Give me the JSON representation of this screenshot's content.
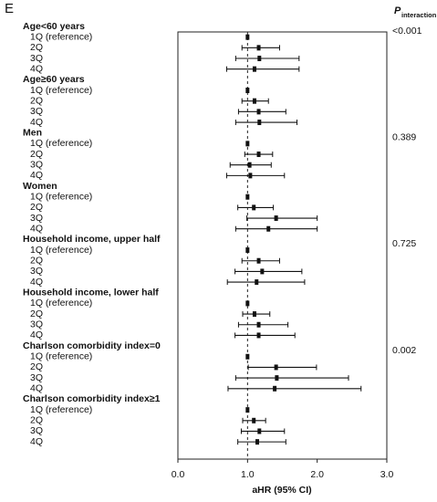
{
  "panel_label": "E",
  "chart_data": {
    "type": "forest",
    "p_header": "P",
    "p_header_sub": "interaction",
    "xlabel": "aHR (95% CI)",
    "xlim": [
      0,
      3
    ],
    "xticks": [
      {
        "value": 0,
        "label": "0.0"
      },
      {
        "value": 1,
        "label": "1.0"
      },
      {
        "value": 2,
        "label": "2.0"
      },
      {
        "value": 3,
        "label": "3.0"
      }
    ],
    "ref_line": 1,
    "groups": [
      {
        "label": "Age<60 years",
        "p_interaction": "<0.001",
        "rows": [
          {
            "label": "1Q (reference)",
            "value": 1.0
          },
          {
            "label": "2Q",
            "value": 1.16,
            "lower": 0.92,
            "upper": 1.46
          },
          {
            "label": "3Q",
            "value": 1.17,
            "lower": 0.83,
            "upper": 1.74
          },
          {
            "label": "4Q",
            "value": 1.1,
            "lower": 0.7,
            "upper": 1.74
          }
        ]
      },
      {
        "label": "Age≥60 years",
        "rows": [
          {
            "label": "1Q (reference)",
            "value": 1.0
          },
          {
            "label": "2Q",
            "value": 1.1,
            "lower": 0.92,
            "upper": 1.3
          },
          {
            "label": "3Q",
            "value": 1.16,
            "lower": 0.87,
            "upper": 1.55
          },
          {
            "label": "4Q",
            "value": 1.17,
            "lower": 0.83,
            "upper": 1.71
          }
        ]
      },
      {
        "label": "Men",
        "p_interaction": "0.389",
        "rows": [
          {
            "label": "1Q (reference)",
            "value": 1.0
          },
          {
            "label": "2Q",
            "value": 1.16,
            "lower": 0.96,
            "upper": 1.36
          },
          {
            "label": "3Q",
            "value": 1.03,
            "lower": 0.75,
            "upper": 1.34
          },
          {
            "label": "4Q",
            "value": 1.04,
            "lower": 0.7,
            "upper": 1.53
          }
        ]
      },
      {
        "label": "Women",
        "rows": [
          {
            "label": "1Q (reference)",
            "value": 1.0
          },
          {
            "label": "2Q",
            "value": 1.09,
            "lower": 0.86,
            "upper": 1.37
          },
          {
            "label": "3Q",
            "value": 1.41,
            "lower": 0.99,
            "upper": 2.0
          },
          {
            "label": "4Q",
            "value": 1.3,
            "lower": 0.83,
            "upper": 2.0
          }
        ]
      },
      {
        "label": "Household income, upper half",
        "p_interaction": "0.725",
        "rows": [
          {
            "label": "1Q (reference)",
            "value": 1.0
          },
          {
            "label": "2Q",
            "value": 1.16,
            "lower": 0.92,
            "upper": 1.46
          },
          {
            "label": "3Q",
            "value": 1.21,
            "lower": 0.82,
            "upper": 1.78
          },
          {
            "label": "4Q",
            "value": 1.13,
            "lower": 0.71,
            "upper": 1.82
          }
        ]
      },
      {
        "label": "Household income, lower half",
        "rows": [
          {
            "label": "1Q (reference)",
            "value": 1.0
          },
          {
            "label": "2Q",
            "value": 1.1,
            "lower": 0.93,
            "upper": 1.32
          },
          {
            "label": "3Q",
            "value": 1.16,
            "lower": 0.87,
            "upper": 1.58
          },
          {
            "label": "4Q",
            "value": 1.16,
            "lower": 0.82,
            "upper": 1.68
          }
        ]
      },
      {
        "label": "Charlson comorbidity index=0",
        "p_interaction": "0.002",
        "rows": [
          {
            "label": "1Q (reference)",
            "value": 1.0
          },
          {
            "label": "2Q",
            "value": 1.41,
            "lower": 1.01,
            "upper": 1.99
          },
          {
            "label": "3Q",
            "value": 1.42,
            "lower": 0.83,
            "upper": 2.45
          },
          {
            "label": "4Q",
            "value": 1.39,
            "lower": 0.72,
            "upper": 2.63
          }
        ]
      },
      {
        "label": "Charlson comorbidity index≥1",
        "rows": [
          {
            "label": "1Q (reference)",
            "value": 1.0
          },
          {
            "label": "2Q",
            "value": 1.09,
            "lower": 0.93,
            "upper": 1.26
          },
          {
            "label": "3Q",
            "value": 1.17,
            "lower": 0.91,
            "upper": 1.53
          },
          {
            "label": "4Q",
            "value": 1.14,
            "lower": 0.86,
            "upper": 1.55
          }
        ]
      }
    ]
  }
}
